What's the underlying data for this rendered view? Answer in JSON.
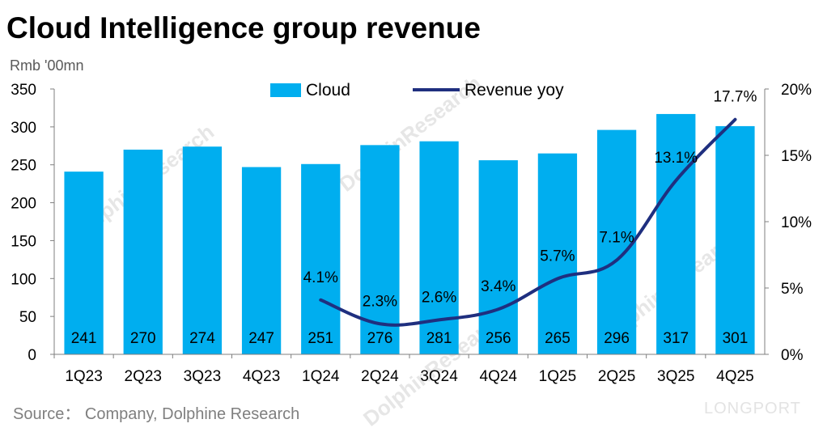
{
  "header": {
    "title": "Cloud Intelligence group revenue",
    "unit": "Rmb '00mn"
  },
  "footer": {
    "source": "Source：  Company, Dolphine Research",
    "brand": "LONGPORT"
  },
  "watermark": {
    "text": "DolphinResearch"
  },
  "colors": {
    "bar": "#00aeef",
    "line": "#1f2f7f",
    "axis": "#000000",
    "text": "#000000"
  },
  "chart_data": {
    "type": "bar",
    "title": "Cloud Intelligence group revenue",
    "ylabel": "Rmb '00mn",
    "categories": [
      "1Q23",
      "2Q23",
      "3Q23",
      "4Q23",
      "1Q24",
      "2Q24",
      "3Q24",
      "4Q24",
      "1Q25",
      "2Q25",
      "3Q25",
      "4Q25"
    ],
    "series": [
      {
        "name": "Cloud",
        "type": "bar",
        "axis": "left",
        "values": [
          241,
          270,
          274,
          247,
          251,
          276,
          281,
          256,
          265,
          296,
          317,
          301
        ],
        "labels": [
          "241",
          "270",
          "274",
          "247",
          "251",
          "276",
          "281",
          "256",
          "265",
          "296",
          "317",
          "301"
        ]
      },
      {
        "name": "Revenue yoy",
        "type": "line",
        "axis": "right",
        "values": [
          null,
          null,
          null,
          null,
          4.1,
          2.3,
          2.6,
          3.4,
          5.7,
          7.1,
          13.1,
          17.7
        ],
        "labels": [
          "",
          "",
          "",
          "",
          "4.1%",
          "2.3%",
          "2.6%",
          "3.4%",
          "5.7%",
          "7.1%",
          "13.1%",
          "17.7%"
        ]
      }
    ],
    "ylim": [
      0,
      350
    ],
    "yticks": [
      "0",
      "50",
      "100",
      "150",
      "200",
      "250",
      "300",
      "350"
    ],
    "y2lim": [
      0,
      20
    ],
    "y2ticks": [
      "0%",
      "5%",
      "10%",
      "15%",
      "20%"
    ],
    "legend": "top-center",
    "grid": false
  }
}
